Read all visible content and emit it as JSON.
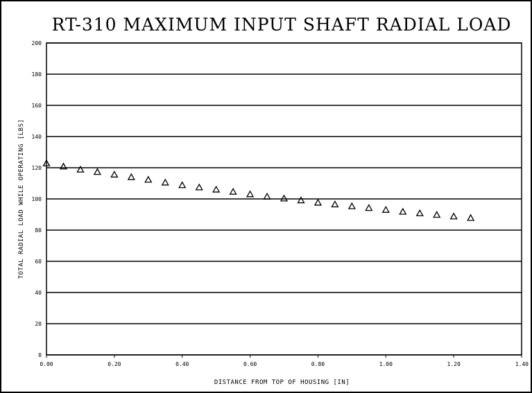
{
  "chart_data": {
    "type": "scatter",
    "title": "RT-310 MAXIMUM INPUT SHAFT RADIAL LOAD",
    "xlabel": "DISTANCE FROM TOP OF HOUSING [IN]",
    "ylabel": "TOTAL RADIAL LOAD WHILE OPERATING [LBS]",
    "xlim": [
      0,
      1.4
    ],
    "ylim": [
      0,
      200
    ],
    "x_ticks": [
      "0.00",
      "0.20",
      "0.40",
      "0.60",
      "0.80",
      "1.00",
      "1.20",
      "1.40"
    ],
    "y_ticks": [
      "0",
      "20",
      "40",
      "60",
      "80",
      "100",
      "120",
      "140",
      "160",
      "180",
      "200"
    ],
    "grid": "horizontal",
    "marker": "triangle",
    "series": [
      {
        "x": [
          0.0,
          0.05,
          0.1,
          0.15,
          0.2,
          0.25,
          0.3,
          0.35,
          0.4,
          0.45,
          0.5,
          0.55,
          0.6,
          0.65,
          0.7,
          0.75,
          0.8,
          0.85,
          0.9,
          0.95,
          1.0,
          1.05,
          1.1,
          1.15,
          1.2,
          1.25
        ],
        "y": [
          123.0,
          121.0,
          119.0,
          117.5,
          115.8,
          114.2,
          112.5,
          110.7,
          109.0,
          107.6,
          106.2,
          104.8,
          103.2,
          101.7,
          100.5,
          99.3,
          97.8,
          96.7,
          95.5,
          94.4,
          93.2,
          92.0,
          91.0,
          90.0,
          89.0,
          88.0
        ]
      }
    ]
  }
}
